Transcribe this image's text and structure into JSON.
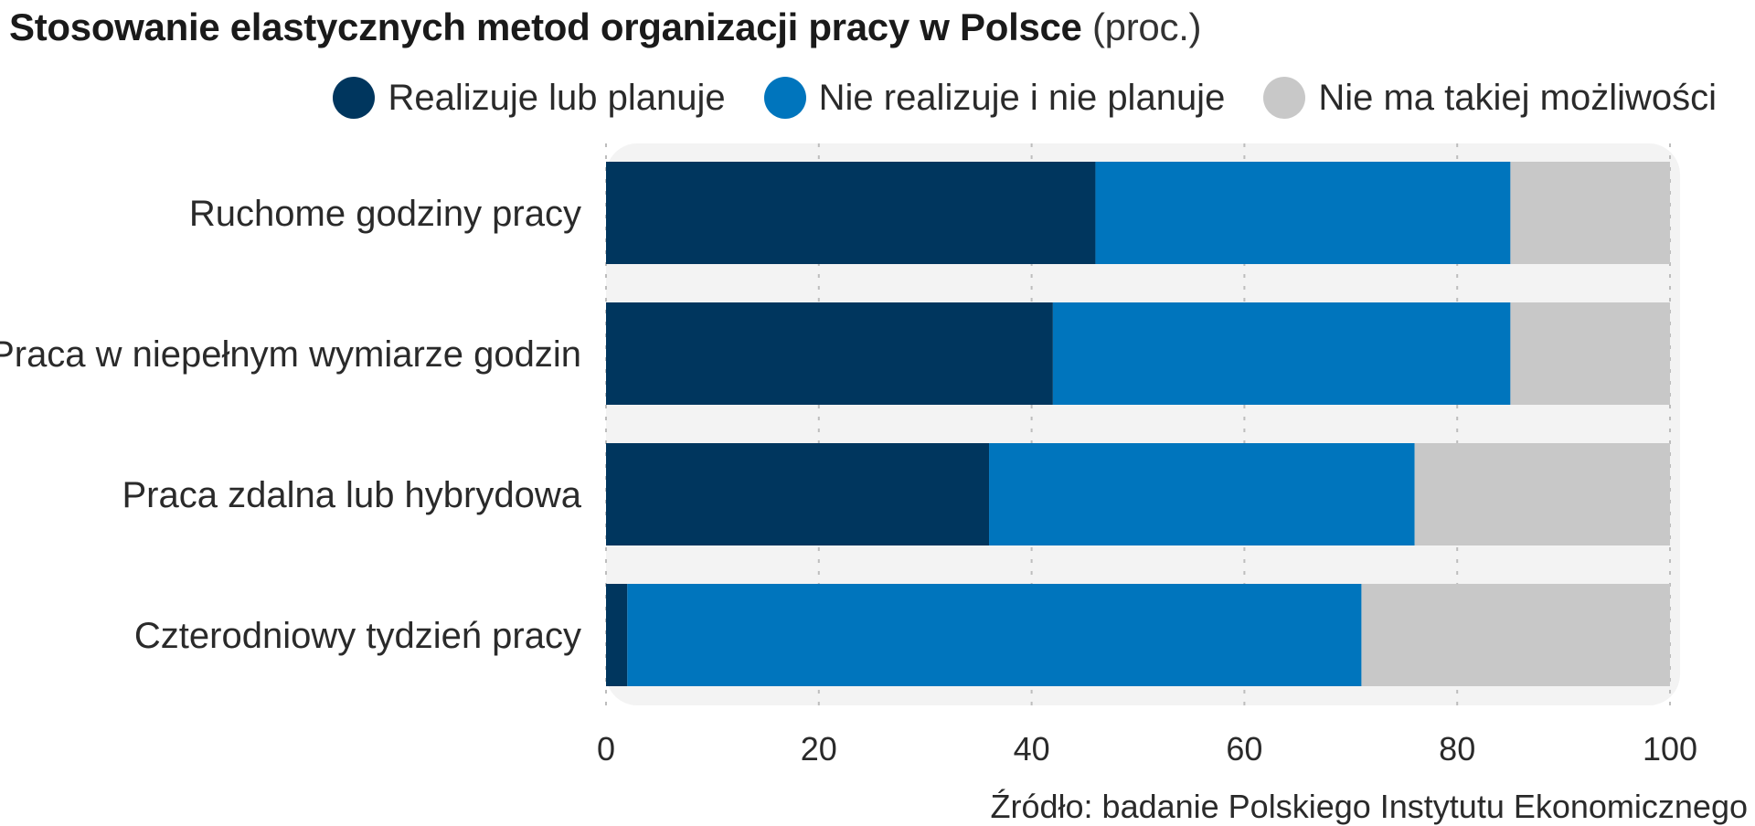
{
  "title": {
    "main": "Stosowanie elastycznych metod organizacji pracy w Polsce",
    "unit": "(proc.)"
  },
  "source": "Źródło: badanie Polskiego Instytutu Ekonomicznego",
  "chart_data": {
    "type": "bar",
    "orientation": "horizontal",
    "stacked": true,
    "categories": [
      "Ruchome godziny pracy",
      "Praca w niepełnym wymiarze godzin",
      "Praca zdalna lub hybrydowa",
      "Czterodniowy tydzień pracy"
    ],
    "series": [
      {
        "name": "Realizuje lub planuje",
        "color": "#00365e",
        "values": [
          46,
          42,
          36,
          2
        ]
      },
      {
        "name": "Nie realizuje i nie planuje",
        "color": "#0075bd",
        "values": [
          39,
          43,
          40,
          69
        ]
      },
      {
        "name": "Nie ma takiej możliwości",
        "color": "#c8c8c8",
        "values": [
          15,
          15,
          24,
          29
        ]
      }
    ],
    "xlim": [
      0,
      100
    ],
    "xticks": [
      0,
      20,
      40,
      60,
      80,
      100
    ],
    "grid": "vertical dashed",
    "legend_position": "top-right"
  }
}
